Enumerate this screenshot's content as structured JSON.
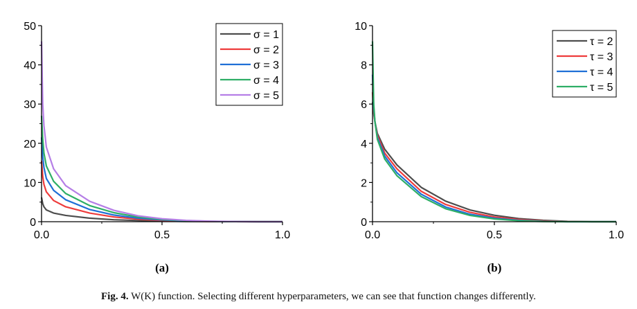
{
  "caption": {
    "lead": "Fig. 4.",
    "text": "W(K) function. Selecting different hyperparameters, we can see that function changes differently."
  },
  "chart_data": [
    {
      "type": "line",
      "panel_label": "(a)",
      "xlim": [
        0.0,
        1.0
      ],
      "ylim": [
        0,
        50
      ],
      "x_ticks": [
        0.0,
        0.5,
        1.0
      ],
      "x_tick_labels": [
        "0.0",
        "0.5",
        "1.0"
      ],
      "y_ticks": [
        0,
        10,
        20,
        30,
        40,
        50
      ],
      "y_tick_labels": [
        "0",
        "10",
        "20",
        "30",
        "40",
        "50"
      ],
      "grid": false,
      "legend_position": "top-right",
      "x": [
        0.0,
        0.005,
        0.01,
        0.02,
        0.05,
        0.1,
        0.2,
        0.3,
        0.4,
        0.5,
        0.6,
        0.7,
        0.8,
        0.9,
        1.0
      ],
      "series": [
        {
          "name": "σ = 1",
          "color": "#4d4d4d",
          "values": [
            6.2,
            4.6,
            3.8,
            3.0,
            2.2,
            1.6,
            0.9,
            0.5,
            0.3,
            0.15,
            0.07,
            0.03,
            0.01,
            0.0,
            0.0
          ]
        },
        {
          "name": "σ = 2",
          "color": "#ee3b3b",
          "values": [
            15.5,
            11.5,
            9.5,
            7.6,
            5.4,
            3.8,
            2.2,
            1.2,
            0.65,
            0.33,
            0.15,
            0.06,
            0.02,
            0.0,
            0.0
          ]
        },
        {
          "name": "σ = 3",
          "color": "#1f6fd6",
          "values": [
            21.5,
            16.5,
            13.8,
            11.0,
            8.0,
            5.6,
            3.1,
            1.7,
            0.9,
            0.45,
            0.2,
            0.08,
            0.02,
            0.0,
            0.0
          ]
        },
        {
          "name": "σ = 4",
          "color": "#2eae66",
          "values": [
            27.0,
            21.0,
            17.5,
            14.2,
            10.3,
            7.2,
            4.1,
            2.3,
            1.2,
            0.6,
            0.27,
            0.1,
            0.03,
            0.0,
            0.0
          ]
        },
        {
          "name": "σ = 5",
          "color": "#b57ee6",
          "values": [
            46.0,
            30.0,
            24.5,
            19.0,
            13.5,
            9.2,
            5.2,
            2.9,
            1.5,
            0.75,
            0.34,
            0.13,
            0.04,
            0.0,
            0.0
          ]
        }
      ]
    },
    {
      "type": "line",
      "panel_label": "(b)",
      "xlim": [
        0.0,
        1.0
      ],
      "ylim": [
        0,
        10
      ],
      "x_ticks": [
        0.0,
        0.5,
        1.0
      ],
      "x_tick_labels": [
        "0.0",
        "0.5",
        "1.0"
      ],
      "y_ticks": [
        0,
        2,
        4,
        6,
        8,
        10
      ],
      "y_tick_labels": [
        "0",
        "2",
        "4",
        "6",
        "8",
        "10"
      ],
      "grid": false,
      "legend_position": "top-right",
      "x": [
        0.0,
        0.005,
        0.01,
        0.02,
        0.05,
        0.1,
        0.2,
        0.3,
        0.4,
        0.5,
        0.6,
        0.7,
        0.8,
        0.9,
        1.0
      ],
      "series": [
        {
          "name": "τ = 2",
          "color": "#4d4d4d",
          "values": [
            6.1,
            5.5,
            5.1,
            4.5,
            3.7,
            2.9,
            1.75,
            1.05,
            0.6,
            0.33,
            0.16,
            0.07,
            0.02,
            0.0,
            0.0
          ]
        },
        {
          "name": "τ = 3",
          "color": "#ee3b3b",
          "values": [
            6.6,
            5.6,
            5.1,
            4.4,
            3.5,
            2.7,
            1.55,
            0.88,
            0.48,
            0.24,
            0.11,
            0.04,
            0.01,
            0.0,
            0.0
          ]
        },
        {
          "name": "τ = 4",
          "color": "#1f6fd6",
          "values": [
            7.5,
            5.8,
            5.1,
            4.3,
            3.35,
            2.5,
            1.4,
            0.75,
            0.38,
            0.18,
            0.07,
            0.02,
            0.0,
            0.0,
            0.0
          ]
        },
        {
          "name": "τ = 5",
          "color": "#2eae66",
          "values": [
            9.2,
            6.0,
            5.1,
            4.2,
            3.2,
            2.35,
            1.28,
            0.66,
            0.32,
            0.14,
            0.05,
            0.01,
            0.0,
            0.0,
            0.0
          ]
        }
      ]
    }
  ]
}
